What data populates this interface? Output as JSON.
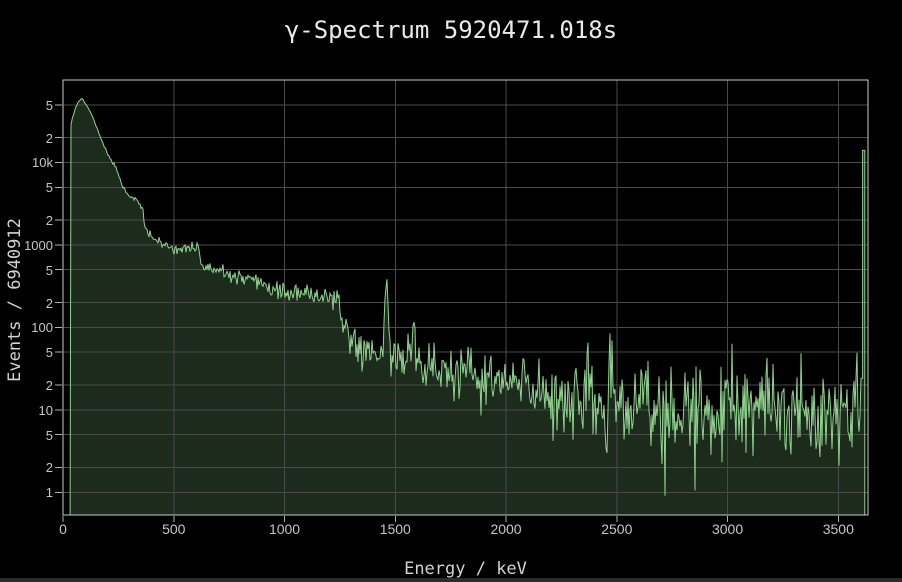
{
  "window": {
    "bottom_bar_color": "#2b2b2b",
    "background_color": "#000000"
  },
  "chart_data": {
    "type": "area",
    "title": "γ-Spectrum 5920471.018s",
    "xlabel": "Energy / keV",
    "ylabel": "Events / 6940912",
    "total_events": "6940912",
    "log_y": true,
    "x_max": 3634,
    "y_min": 0.53,
    "y_max": 100000,
    "start_energy": 32,
    "x_ticks": [
      {
        "v": 0,
        "label": "0"
      },
      {
        "v": 500,
        "label": "500"
      },
      {
        "v": 1000,
        "label": "1000"
      },
      {
        "v": 1500,
        "label": "1500"
      },
      {
        "v": 2000,
        "label": "2000"
      },
      {
        "v": 2500,
        "label": "2500"
      },
      {
        "v": 3000,
        "label": "3000"
      },
      {
        "v": 3500,
        "label": "3500"
      }
    ],
    "y_ticks": [
      {
        "v": 50000,
        "label": "5"
      },
      {
        "v": 20000,
        "label": "2"
      },
      {
        "v": 10000,
        "label": "10k"
      },
      {
        "v": 5000,
        "label": "5"
      },
      {
        "v": 2000,
        "label": "2"
      },
      {
        "v": 1000,
        "label": "1000"
      },
      {
        "v": 500,
        "label": "5"
      },
      {
        "v": 200,
        "label": "2"
      },
      {
        "v": 100,
        "label": "100"
      },
      {
        "v": 50,
        "label": "5"
      },
      {
        "v": 20,
        "label": "2"
      },
      {
        "v": 10,
        "label": "10"
      },
      {
        "v": 5,
        "label": "5"
      },
      {
        "v": 2,
        "label": "2"
      },
      {
        "v": 1,
        "label": "1"
      }
    ],
    "envelope": [
      [
        32,
        25000
      ],
      [
        40,
        33000
      ],
      [
        55,
        45000
      ],
      [
        70,
        55000
      ],
      [
        86,
        60000
      ],
      [
        100,
        52000
      ],
      [
        122,
        42000
      ],
      [
        144,
        30500
      ],
      [
        167,
        21000
      ],
      [
        190,
        14800
      ],
      [
        212,
        11200
      ],
      [
        228,
        9600
      ],
      [
        236,
        9000
      ],
      [
        252,
        6900
      ],
      [
        270,
        5100
      ],
      [
        288,
        4300
      ],
      [
        300,
        3900
      ],
      [
        325,
        3700
      ],
      [
        345,
        3100
      ],
      [
        360,
        2700
      ],
      [
        368,
        1650
      ],
      [
        385,
        1380
      ],
      [
        415,
        1180
      ],
      [
        450,
        1000
      ],
      [
        495,
        930
      ],
      [
        540,
        880
      ],
      [
        575,
        855
      ],
      [
        608,
        840
      ],
      [
        618,
        560
      ],
      [
        640,
        530
      ],
      [
        665,
        505
      ],
      [
        710,
        465
      ],
      [
        755,
        425
      ],
      [
        800,
        390
      ],
      [
        845,
        360
      ],
      [
        890,
        322
      ],
      [
        935,
        297
      ],
      [
        980,
        273
      ],
      [
        1025,
        258
      ],
      [
        1080,
        250
      ],
      [
        1150,
        245
      ],
      [
        1215,
        238
      ],
      [
        1232,
        200
      ],
      [
        1255,
        140
      ],
      [
        1275,
        100
      ],
      [
        1298,
        76
      ],
      [
        1330,
        60
      ],
      [
        1380,
        52
      ],
      [
        1440,
        50
      ],
      [
        1462,
        50
      ],
      [
        1520,
        44
      ],
      [
        1560,
        42
      ],
      [
        1600,
        38
      ],
      [
        1650,
        33
      ],
      [
        1700,
        30
      ],
      [
        1800,
        26
      ],
      [
        1900,
        23
      ],
      [
        2000,
        21
      ],
      [
        2100,
        19
      ],
      [
        2200,
        16.5
      ],
      [
        2300,
        14
      ],
      [
        2400,
        11.5
      ],
      [
        2500,
        11
      ],
      [
        2580,
        10.5
      ],
      [
        2660,
        9
      ],
      [
        2750,
        8.8
      ],
      [
        2900,
        9
      ],
      [
        3050,
        9.5
      ],
      [
        3200,
        10
      ],
      [
        3350,
        10.3
      ],
      [
        3500,
        10.8
      ],
      [
        3610,
        11
      ]
    ],
    "peaks": [
      {
        "center": 583,
        "sigma": 6,
        "amp": 140
      },
      {
        "center": 609,
        "sigma": 7,
        "amp": 260
      },
      {
        "center": 911,
        "sigma": 5,
        "amp": 75
      },
      {
        "center": 1460,
        "sigma": 5.5,
        "amp": 310
      },
      {
        "center": 1583,
        "sigma": 5,
        "amp": 95
      },
      {
        "center": 2614,
        "sigma": 10,
        "amp": 14
      }
    ],
    "downspikes": [
      {
        "e": 2851,
        "v": 1.05
      },
      {
        "e": 2705,
        "v": 2.2
      },
      {
        "e": 3502,
        "v": 2.1
      },
      {
        "e": 2210,
        "v": 4.2
      },
      {
        "e": 2455,
        "v": 3.0
      },
      {
        "e": 3560,
        "v": 3.5
      },
      {
        "e": 1332,
        "v": 38
      }
    ],
    "overflow_bin": {
      "energy": 3614,
      "counts": 14000
    },
    "noise": {
      "seed": 11,
      "coeff": 0.85,
      "sigma_cap": 0.32
    },
    "colors": {
      "line": "#8fd38f",
      "fill": "#1d2b1d",
      "grid": "#4a4a4a",
      "border": "#cacaca",
      "tick": "#b0b0b0",
      "tick_label": "#c6c6c6",
      "title": "#eaeaea",
      "axis_label": "#d2d2d2"
    }
  }
}
